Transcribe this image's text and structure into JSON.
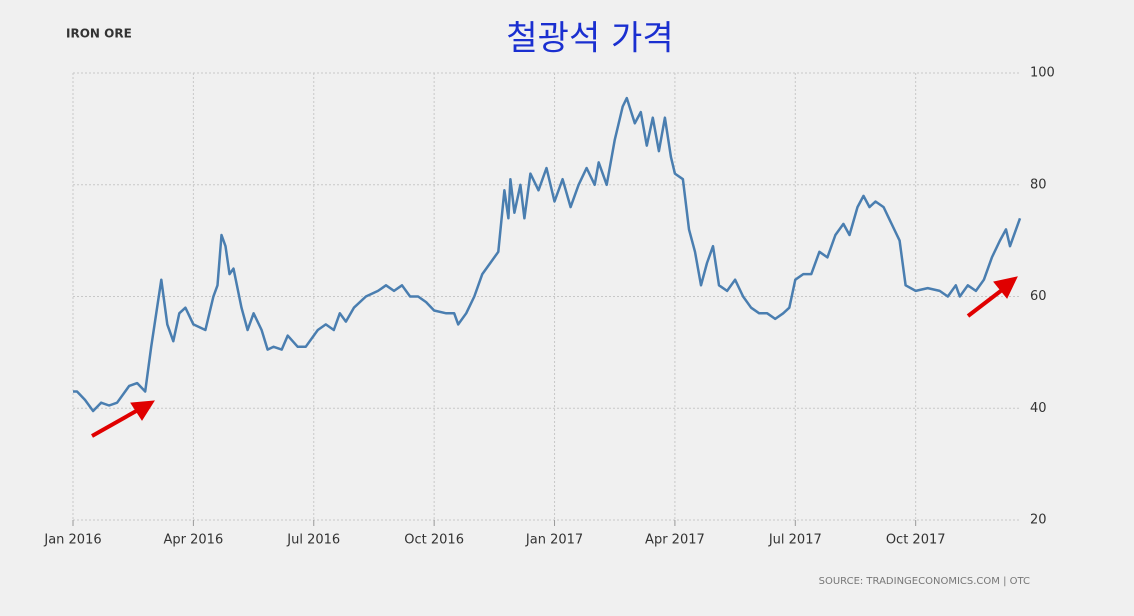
{
  "chart_data": {
    "type": "line",
    "label": "IRON ORE",
    "title": "철광석 가격",
    "source": "SOURCE: TRADINGECONOMICS.COM | OTC",
    "xlim": [
      0,
      23.6
    ],
    "xticks": [
      {
        "value": 0,
        "label": "Jan 2016"
      },
      {
        "value": 3,
        "label": "Apr 2016"
      },
      {
        "value": 6,
        "label": "Jul 2016"
      },
      {
        "value": 9,
        "label": "Oct 2016"
      },
      {
        "value": 12,
        "label": "Jan 2017"
      },
      {
        "value": 15,
        "label": "Apr 2017"
      },
      {
        "value": 18,
        "label": "Jul 2017"
      },
      {
        "value": 21,
        "label": "Oct 2017"
      }
    ],
    "ylim": [
      20,
      100
    ],
    "yticks": [
      20,
      40,
      60,
      80,
      100
    ],
    "grid": true,
    "series": [
      {
        "color": "#4a7eb0",
        "x": [
          0,
          0.1,
          0.3,
          0.5,
          0.7,
          0.9,
          1.1,
          1.4,
          1.6,
          1.8,
          1.95,
          2.2,
          2.35,
          2.5,
          2.65,
          2.8,
          3.0,
          3.3,
          3.5,
          3.6,
          3.7,
          3.8,
          3.9,
          4.0,
          4.2,
          4.35,
          4.5,
          4.7,
          4.85,
          5.0,
          5.2,
          5.35,
          5.6,
          5.8,
          6.1,
          6.3,
          6.5,
          6.65,
          6.8,
          7.0,
          7.3,
          7.6,
          7.8,
          8.0,
          8.2,
          8.4,
          8.6,
          8.8,
          9.0,
          9.3,
          9.5,
          9.6,
          9.8,
          10.0,
          10.2,
          10.4,
          10.6,
          10.75,
          10.85,
          10.9,
          11.0,
          11.15,
          11.25,
          11.4,
          11.6,
          11.8,
          12.0,
          12.2,
          12.4,
          12.6,
          12.8,
          13.0,
          13.1,
          13.3,
          13.5,
          13.7,
          13.8,
          14.0,
          14.15,
          14.3,
          14.45,
          14.6,
          14.75,
          14.9,
          15.0,
          15.2,
          15.35,
          15.5,
          15.65,
          15.8,
          15.95,
          16.1,
          16.3,
          16.5,
          16.7,
          16.9,
          17.1,
          17.3,
          17.5,
          17.7,
          17.85,
          18.0,
          18.2,
          18.4,
          18.6,
          18.8,
          19.0,
          19.2,
          19.35,
          19.55,
          19.7,
          19.85,
          20.0,
          20.2,
          20.4,
          20.6,
          20.75,
          21.0,
          21.3,
          21.6,
          21.8,
          22.0,
          22.1,
          22.3,
          22.5,
          22.7,
          22.9,
          23.1,
          23.25,
          23.35,
          23.5,
          23.6
        ],
        "values": [
          43,
          43,
          41.5,
          39.5,
          41,
          40.5,
          41,
          44,
          44.5,
          43,
          51,
          63,
          55,
          52,
          57,
          58,
          55,
          54,
          60,
          62,
          71,
          69,
          64,
          65,
          58,
          54,
          57,
          54,
          50.5,
          51,
          50.5,
          53,
          51,
          51,
          54,
          55,
          54,
          57,
          55.5,
          58,
          60,
          61,
          62,
          61,
          62,
          60,
          60,
          59,
          57.5,
          57,
          57,
          55,
          57,
          60,
          64,
          66,
          68,
          79,
          74,
          81,
          75,
          80,
          74,
          82,
          79,
          83,
          77,
          81,
          76,
          80,
          83,
          80,
          84,
          80,
          88,
          94,
          95.5,
          91,
          93,
          87,
          92,
          86,
          92,
          85,
          82,
          81,
          72,
          68,
          62,
          66,
          69,
          62,
          61,
          63,
          60,
          58,
          57,
          57,
          56,
          57,
          58,
          63,
          64,
          64,
          68,
          67,
          71,
          73,
          71,
          76,
          78,
          76,
          77,
          76,
          73,
          70,
          62,
          61,
          61.5,
          61,
          60,
          62,
          60,
          62,
          61,
          63,
          67,
          70,
          72,
          69,
          72,
          74
        ]
      }
    ]
  }
}
